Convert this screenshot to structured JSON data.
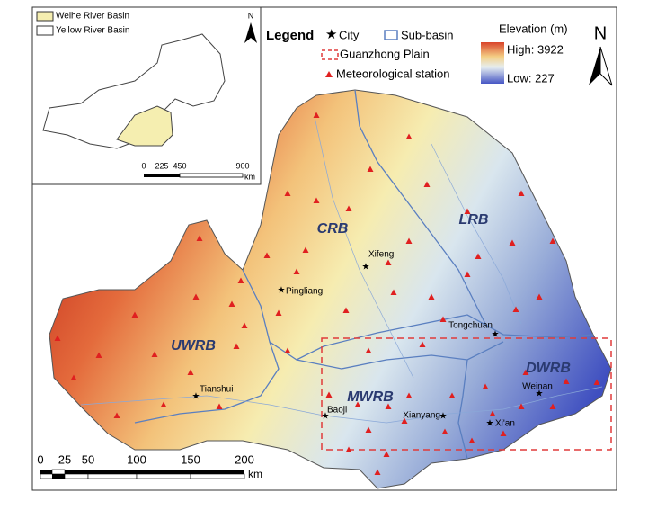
{
  "legend": {
    "title": "Legend",
    "city": "City",
    "sub_basin": "Sub-basin",
    "guanzhong": "Guanzhong Plain",
    "station": "Meteorological station"
  },
  "elevation": {
    "title": "Elevation (m)",
    "high": "High: 3922",
    "low": "Low: 227"
  },
  "north": "N",
  "inset": {
    "weihe": "Weihe River Basin",
    "yellow": "Yellow River Basin",
    "north": "N",
    "scale": [
      "0",
      "225",
      "450",
      "900"
    ],
    "unit": "km"
  },
  "subbasins": [
    "CRB",
    "LRB",
    "UWRB",
    "MWRB",
    "DWRB"
  ],
  "cities": [
    "Xifeng",
    "Pingliang",
    "Tongchuan",
    "Tianshui",
    "Baoji",
    "Xianyang",
    "Xi'an",
    "Weinan"
  ],
  "scale": {
    "ticks": [
      "0",
      "25",
      "50",
      "100",
      "150",
      "200"
    ],
    "unit": "km"
  }
}
